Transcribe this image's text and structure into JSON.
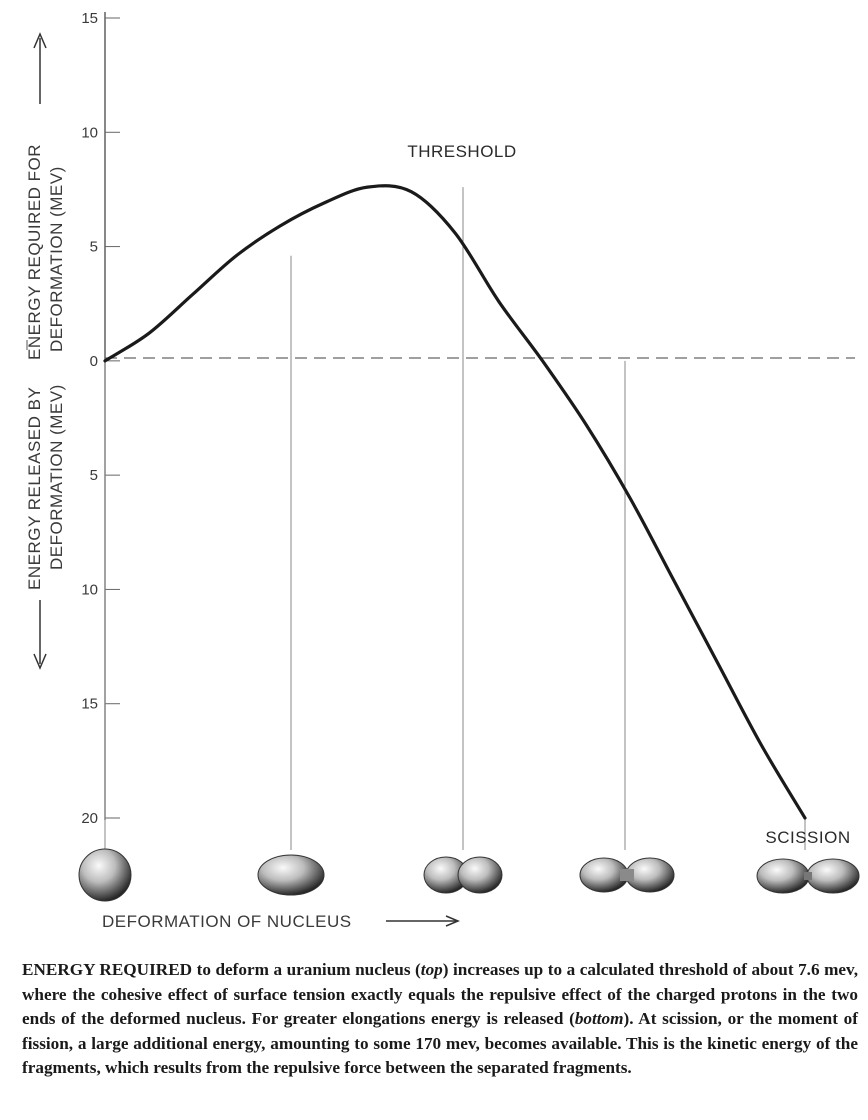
{
  "chart_data": {
    "type": "line",
    "ylabel_top": "ENERGY REQUIRED FOR DEFORMATION (MEV)",
    "ylabel_top_line1": "ENERGY REQUIRED FOR",
    "ylabel_top_line2": "DEFORMATION (MEV)",
    "ylabel_bottom_line1": "ENERGY RELEASED BY",
    "ylabel_bottom_line2": "DEFORMATION (MEV)",
    "xlabel": "DEFORMATION OF NUCLEUS",
    "y_tick_labels": [
      "15",
      "10",
      "5",
      "0",
      "5",
      "10",
      "15",
      "20"
    ],
    "y_tick_values": [
      15,
      10,
      5,
      0,
      -5,
      -10,
      -15,
      -20
    ],
    "ylim": [
      -20,
      15
    ],
    "grid": false,
    "series": [
      {
        "x": [
          0,
          1,
          2,
          3,
          4,
          5,
          6,
          7,
          8,
          9,
          10,
          11,
          12,
          13,
          14,
          15,
          16
        ],
        "values": [
          0,
          1.2,
          2.9,
          4.6,
          5.9,
          6.9,
          7.6,
          7.4,
          5.6,
          2.6,
          0,
          -2.8,
          -6.0,
          -9.6,
          -13.2,
          -16.8,
          -20.0
        ]
      }
    ],
    "reference_markers": [
      0,
      1,
      2,
      3,
      4
    ],
    "annotations": {
      "threshold": "THRESHOLD",
      "scission": "SCISSION"
    }
  },
  "caption": {
    "lead": "ENERGY REQUIRED",
    "part1": " to deform a uranium nucleus (",
    "top_word": "top",
    "part2": ") increases up to a calculated threshold of about 7.6 mev, where the cohesive effect of surface tension exactly equals the repulsive effect of the charged protons in the two ends of the deformed nucleus. For greater elongations energy is released (",
    "bottom_word": "bottom",
    "part3": "). At scission, or the moment of fission, a large additional energy, amounting to some 170 mev, becomes available. This is the kinetic energy of the fragments, which results from the repulsive force between the separated fragments."
  }
}
